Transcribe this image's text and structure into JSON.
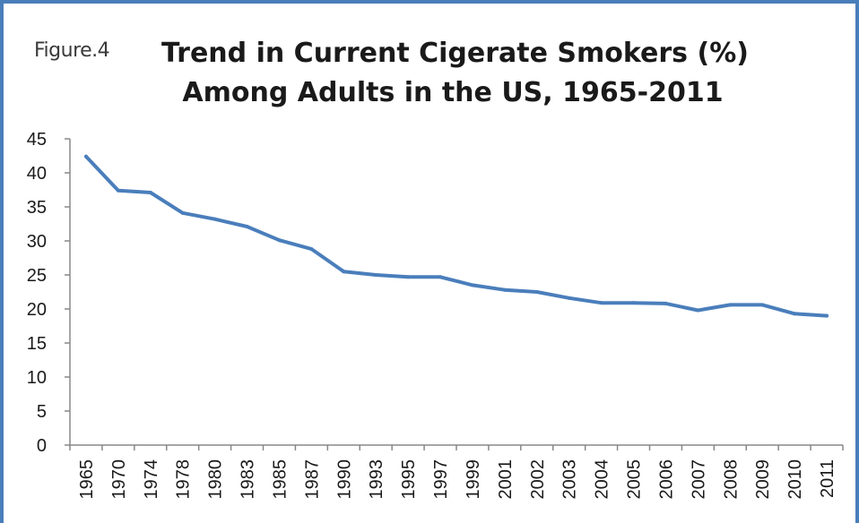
{
  "figure_label": "Figure.4",
  "chart_data": {
    "type": "line",
    "title_lines": [
      "Trend in Current Cigerate Smokers (%)",
      "Among Adults in the US, 1965-2011"
    ],
    "xlabel": "",
    "ylabel": "",
    "categories": [
      "1965",
      "1970",
      "1974",
      "1978",
      "1980",
      "1983",
      "1985",
      "1987",
      "1990",
      "1993",
      "1995",
      "1997",
      "1999",
      "2001",
      "2002",
      "2003",
      "2004",
      "2005",
      "2006",
      "2007",
      "2008",
      "2009",
      "2010",
      "2011"
    ],
    "series": [
      {
        "values": [
          42.4,
          37.4,
          37.1,
          34.1,
          33.2,
          32.1,
          30.1,
          28.8,
          25.5,
          25.0,
          24.7,
          24.7,
          23.5,
          22.8,
          22.5,
          21.6,
          20.9,
          20.9,
          20.8,
          19.8,
          20.6,
          20.6,
          19.3,
          19.0
        ]
      }
    ],
    "ylim": [
      0,
      45
    ],
    "yticks": [
      0,
      5,
      10,
      15,
      20,
      25,
      30,
      35,
      40,
      45
    ],
    "grid": false,
    "legend": "none",
    "colors": {
      "line": "#4a7ebb",
      "axis": "#888888",
      "frame": "#4a7ebb"
    }
  }
}
